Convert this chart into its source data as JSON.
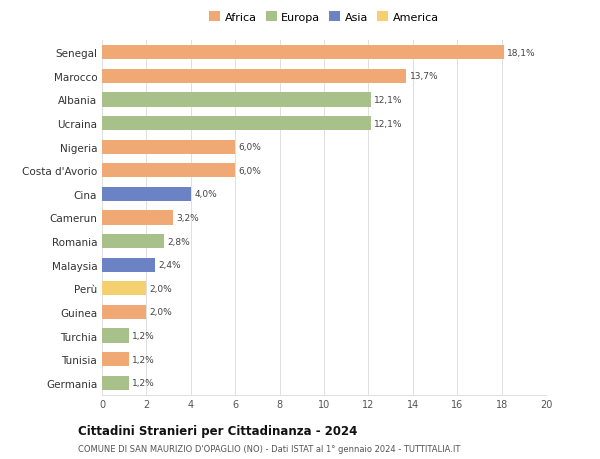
{
  "categories": [
    "Senegal",
    "Marocco",
    "Albania",
    "Ucraina",
    "Nigeria",
    "Costa d'Avorio",
    "Cina",
    "Camerun",
    "Romania",
    "Malaysia",
    "Perù",
    "Guinea",
    "Turchia",
    "Tunisia",
    "Germania"
  ],
  "values": [
    18.1,
    13.7,
    12.1,
    12.1,
    6.0,
    6.0,
    4.0,
    3.2,
    2.8,
    2.4,
    2.0,
    2.0,
    1.2,
    1.2,
    1.2
  ],
  "labels": [
    "18,1%",
    "13,7%",
    "12,1%",
    "12,1%",
    "6,0%",
    "6,0%",
    "4,0%",
    "3,2%",
    "2,8%",
    "2,4%",
    "2,0%",
    "2,0%",
    "1,2%",
    "1,2%",
    "1,2%"
  ],
  "colors": [
    "#F0A875",
    "#F0A875",
    "#A8C08A",
    "#A8C08A",
    "#F0A875",
    "#F0A875",
    "#6B82C4",
    "#F0A875",
    "#A8C08A",
    "#6B82C4",
    "#F5D070",
    "#F0A875",
    "#A8C08A",
    "#F0A875",
    "#A8C08A"
  ],
  "legend_labels": [
    "Africa",
    "Europa",
    "Asia",
    "America"
  ],
  "legend_colors": [
    "#F0A875",
    "#A8C08A",
    "#6B82C4",
    "#F5D070"
  ],
  "title": "Cittadini Stranieri per Cittadinanza - 2024",
  "subtitle": "COMUNE DI SAN MAURIZIO D'OPAGLIO (NO) - Dati ISTAT al 1° gennaio 2024 - TUTTITALIA.IT",
  "xlim": [
    0,
    20
  ],
  "xticks": [
    0,
    2,
    4,
    6,
    8,
    10,
    12,
    14,
    16,
    18,
    20
  ],
  "bg_color": "#ffffff",
  "grid_color": "#e0e0e0"
}
